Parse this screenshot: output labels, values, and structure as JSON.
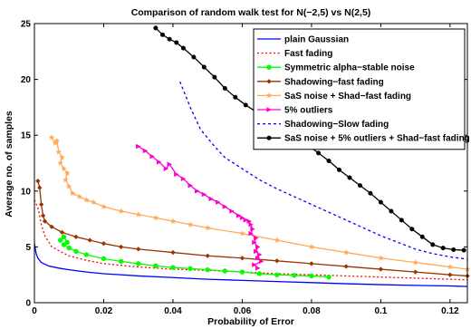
{
  "chart_data": {
    "type": "line",
    "title": "Comparison of random walk test for N(−2,5) vs N(2,5)",
    "xlabel": "Probability of Error",
    "ylabel": "Average no. of samples",
    "xlim": [
      0,
      0.125
    ],
    "ylim": [
      0,
      25
    ],
    "xticks": [
      0,
      0.02,
      0.04,
      0.06,
      0.08,
      0.1,
      0.12
    ],
    "xtick_labels": [
      "0",
      "0.02",
      "0.04",
      "0.06",
      "0.08",
      "0.1",
      "0.12"
    ],
    "yticks": [
      0,
      5,
      10,
      15,
      20,
      25
    ],
    "ytick_labels": [
      "0",
      "5",
      "10",
      "15",
      "20",
      "25"
    ],
    "grid": false,
    "legend_position": "top-right",
    "series": [
      {
        "name": "plain Gaussian",
        "color": "#0000ff",
        "dash": "solid",
        "marker": "none",
        "points": [
          [
            0,
            5.3
          ],
          [
            0.0005,
            4.4
          ],
          [
            0.001,
            4.0
          ],
          [
            0.002,
            3.6
          ],
          [
            0.004,
            3.3
          ],
          [
            0.007,
            3.1
          ],
          [
            0.01,
            2.95
          ],
          [
            0.015,
            2.75
          ],
          [
            0.02,
            2.6
          ],
          [
            0.03,
            2.4
          ],
          [
            0.04,
            2.25
          ],
          [
            0.05,
            2.1
          ],
          [
            0.06,
            2.0
          ],
          [
            0.07,
            1.9
          ],
          [
            0.08,
            1.8
          ],
          [
            0.09,
            1.7
          ],
          [
            0.1,
            1.62
          ],
          [
            0.11,
            1.55
          ],
          [
            0.12,
            1.5
          ],
          [
            0.125,
            1.45
          ]
        ]
      },
      {
        "name": "Fast fading",
        "color": "#ff0000",
        "dash": "dotted",
        "marker": "none",
        "points": [
          [
            0,
            9.2
          ],
          [
            0.001,
            8.5
          ],
          [
            0.002,
            7.0
          ],
          [
            0.003,
            6.0
          ],
          [
            0.005,
            5.0
          ],
          [
            0.008,
            4.5
          ],
          [
            0.01,
            4.2
          ],
          [
            0.015,
            3.8
          ],
          [
            0.02,
            3.5
          ],
          [
            0.03,
            3.2
          ],
          [
            0.04,
            3.0
          ],
          [
            0.05,
            2.9
          ],
          [
            0.06,
            2.75
          ],
          [
            0.07,
            2.6
          ],
          [
            0.08,
            2.5
          ],
          [
            0.09,
            2.4
          ],
          [
            0.1,
            2.3
          ],
          [
            0.11,
            2.2
          ],
          [
            0.12,
            2.1
          ],
          [
            0.125,
            2.05
          ]
        ]
      },
      {
        "name": "Symmetric alpha−stable noise",
        "color": "#00ff00",
        "dash": "solid",
        "marker": "circle",
        "points": [
          [
            0.0075,
            5.6
          ],
          [
            0.0085,
            5.9
          ],
          [
            0.0095,
            5.4
          ],
          [
            0.0085,
            5.2
          ],
          [
            0.01,
            4.9
          ],
          [
            0.012,
            4.6
          ],
          [
            0.015,
            4.3
          ],
          [
            0.02,
            3.95
          ],
          [
            0.025,
            3.7
          ],
          [
            0.03,
            3.5
          ],
          [
            0.035,
            3.3
          ],
          [
            0.04,
            3.15
          ],
          [
            0.045,
            3.05
          ],
          [
            0.05,
            2.95
          ],
          [
            0.055,
            2.85
          ],
          [
            0.06,
            2.75
          ],
          [
            0.065,
            2.6
          ],
          [
            0.07,
            2.5
          ],
          [
            0.075,
            2.45
          ],
          [
            0.08,
            2.4
          ],
          [
            0.085,
            2.3
          ]
        ]
      },
      {
        "name": "Shadowing−fast fading",
        "color": "#993300",
        "dash": "solid",
        "marker": "diamond",
        "points": [
          [
            0.001,
            10.9
          ],
          [
            0.0015,
            10.3
          ],
          [
            0.002,
            8.8
          ],
          [
            0.0025,
            7.8
          ],
          [
            0.003,
            7.3
          ],
          [
            0.005,
            6.8
          ],
          [
            0.008,
            6.3
          ],
          [
            0.012,
            5.9
          ],
          [
            0.016,
            5.6
          ],
          [
            0.02,
            5.3
          ],
          [
            0.025,
            5.0
          ],
          [
            0.03,
            4.8
          ],
          [
            0.04,
            4.5
          ],
          [
            0.05,
            4.2
          ],
          [
            0.06,
            4.0
          ],
          [
            0.07,
            3.75
          ],
          [
            0.08,
            3.5
          ],
          [
            0.09,
            3.25
          ],
          [
            0.1,
            3.0
          ],
          [
            0.11,
            2.75
          ],
          [
            0.12,
            2.5
          ],
          [
            0.125,
            2.4
          ]
        ]
      },
      {
        "name": "SaS noise + Shad−fast fading",
        "color": "#ffaa55",
        "dash": "solid",
        "marker": "star",
        "points": [
          [
            0.005,
            14.8
          ],
          [
            0.006,
            14.3
          ],
          [
            0.0065,
            14.5
          ],
          [
            0.007,
            13.5
          ],
          [
            0.008,
            13.0
          ],
          [
            0.0075,
            12.5
          ],
          [
            0.0085,
            12.0
          ],
          [
            0.0095,
            11.6
          ],
          [
            0.009,
            11.0
          ],
          [
            0.01,
            10.4
          ],
          [
            0.011,
            9.8
          ],
          [
            0.013,
            9.5
          ],
          [
            0.015,
            9.2
          ],
          [
            0.017,
            9.0
          ],
          [
            0.02,
            8.6
          ],
          [
            0.025,
            8.2
          ],
          [
            0.03,
            7.9
          ],
          [
            0.035,
            7.6
          ],
          [
            0.04,
            7.3
          ],
          [
            0.045,
            7.0
          ],
          [
            0.05,
            6.7
          ],
          [
            0.06,
            6.2
          ],
          [
            0.07,
            5.6
          ],
          [
            0.08,
            5.0
          ],
          [
            0.09,
            4.5
          ],
          [
            0.1,
            4.0
          ],
          [
            0.11,
            3.6
          ],
          [
            0.12,
            3.2
          ],
          [
            0.125,
            3.0
          ]
        ]
      },
      {
        "name": "5% outliers",
        "color": "#ff00cc",
        "dash": "solid",
        "marker": "triangle-right",
        "points": [
          [
            0.03,
            14.0
          ],
          [
            0.032,
            13.6
          ],
          [
            0.034,
            13.1
          ],
          [
            0.036,
            12.6
          ],
          [
            0.038,
            12.0
          ],
          [
            0.039,
            12.4
          ],
          [
            0.041,
            11.5
          ],
          [
            0.043,
            11.1
          ],
          [
            0.045,
            10.5
          ],
          [
            0.047,
            10.0
          ],
          [
            0.049,
            9.7
          ],
          [
            0.051,
            9.3
          ],
          [
            0.053,
            9.0
          ],
          [
            0.055,
            8.6
          ],
          [
            0.057,
            8.2
          ],
          [
            0.059,
            7.8
          ],
          [
            0.06,
            7.6
          ],
          [
            0.061,
            7.4
          ],
          [
            0.062,
            7.3
          ],
          [
            0.0625,
            7.0
          ],
          [
            0.063,
            6.6
          ],
          [
            0.0625,
            6.2
          ],
          [
            0.064,
            5.8
          ],
          [
            0.0635,
            5.4
          ],
          [
            0.0645,
            5.0
          ],
          [
            0.064,
            4.6
          ],
          [
            0.065,
            4.3
          ],
          [
            0.0645,
            4.0
          ],
          [
            0.0655,
            3.7
          ],
          [
            0.0635,
            3.4
          ],
          [
            0.0645,
            3.1
          ]
        ]
      },
      {
        "name": "Shadowing−Slow fading",
        "color": "#0000ff",
        "dash": "dashed",
        "marker": "none",
        "points": [
          [
            0.042,
            19.8
          ],
          [
            0.045,
            17.5
          ],
          [
            0.048,
            15.5
          ],
          [
            0.052,
            14.0
          ],
          [
            0.055,
            13.0
          ],
          [
            0.06,
            12.0
          ],
          [
            0.065,
            11.0
          ],
          [
            0.07,
            10.2
          ],
          [
            0.075,
            9.5
          ],
          [
            0.08,
            8.8
          ],
          [
            0.085,
            8.1
          ],
          [
            0.09,
            7.4
          ],
          [
            0.095,
            6.7
          ],
          [
            0.1,
            6.0
          ],
          [
            0.105,
            5.4
          ],
          [
            0.11,
            4.8
          ],
          [
            0.115,
            4.4
          ],
          [
            0.12,
            4.1
          ],
          [
            0.125,
            3.9
          ]
        ]
      },
      {
        "name": "SaS noise + 5% outliers + Shad−fast fading",
        "color": "#000000",
        "dash": "solid",
        "marker": "circle-filled",
        "points": [
          [
            0.035,
            24.6
          ],
          [
            0.037,
            24.0
          ],
          [
            0.039,
            23.6
          ],
          [
            0.041,
            23.3
          ],
          [
            0.043,
            22.8
          ],
          [
            0.046,
            22.0
          ],
          [
            0.049,
            21.1
          ],
          [
            0.052,
            20.2
          ],
          [
            0.055,
            19.2
          ],
          [
            0.058,
            18.4
          ],
          [
            0.061,
            17.7
          ],
          [
            0.064,
            17.1
          ],
          [
            0.067,
            16.5
          ],
          [
            0.07,
            15.9
          ],
          [
            0.073,
            15.4
          ],
          [
            0.076,
            14.8
          ],
          [
            0.079,
            14.1
          ],
          [
            0.082,
            13.4
          ],
          [
            0.085,
            12.7
          ],
          [
            0.088,
            11.9
          ],
          [
            0.091,
            11.2
          ],
          [
            0.094,
            10.5
          ],
          [
            0.097,
            9.8
          ],
          [
            0.1,
            9.0
          ],
          [
            0.103,
            8.2
          ],
          [
            0.106,
            7.4
          ],
          [
            0.109,
            6.6
          ],
          [
            0.112,
            5.9
          ],
          [
            0.115,
            5.2
          ],
          [
            0.118,
            4.9
          ],
          [
            0.121,
            4.75
          ],
          [
            0.124,
            4.7
          ]
        ]
      }
    ]
  }
}
